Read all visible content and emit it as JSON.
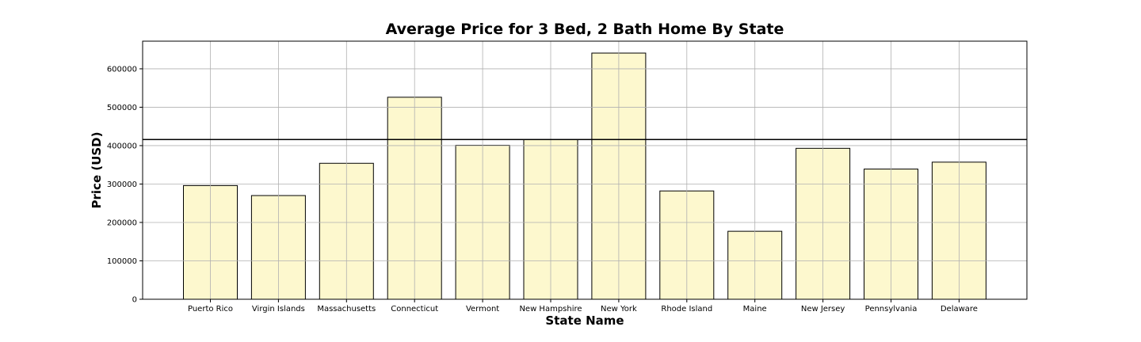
{
  "chart_data": {
    "type": "bar",
    "title": "Average Price for 3 Bed, 2 Bath Home By State",
    "xlabel": "State Name",
    "ylabel": "Price (USD)",
    "categories": [
      "Puerto Rico",
      "Virgin Islands",
      "Massachusetts",
      "Connecticut",
      "Vermont",
      "New Hampshire",
      "New York",
      "Rhode Island",
      "Maine",
      "New Jersey",
      "Pennsylvania",
      "Delaware"
    ],
    "values": [
      296000,
      270000,
      354000,
      526000,
      401000,
      416000,
      641000,
      282000,
      177000,
      393000,
      339000,
      357000
    ],
    "reference_line": 416000,
    "ylim": [
      0,
      672000
    ],
    "yticks": [
      0,
      100000,
      200000,
      300000,
      400000,
      500000,
      600000
    ],
    "grid": true,
    "colors": {
      "bar_fill": "#fdf8ce",
      "bar_edge": "#000000",
      "grid": "#b0b0b0",
      "reference_line": "#000000"
    }
  }
}
